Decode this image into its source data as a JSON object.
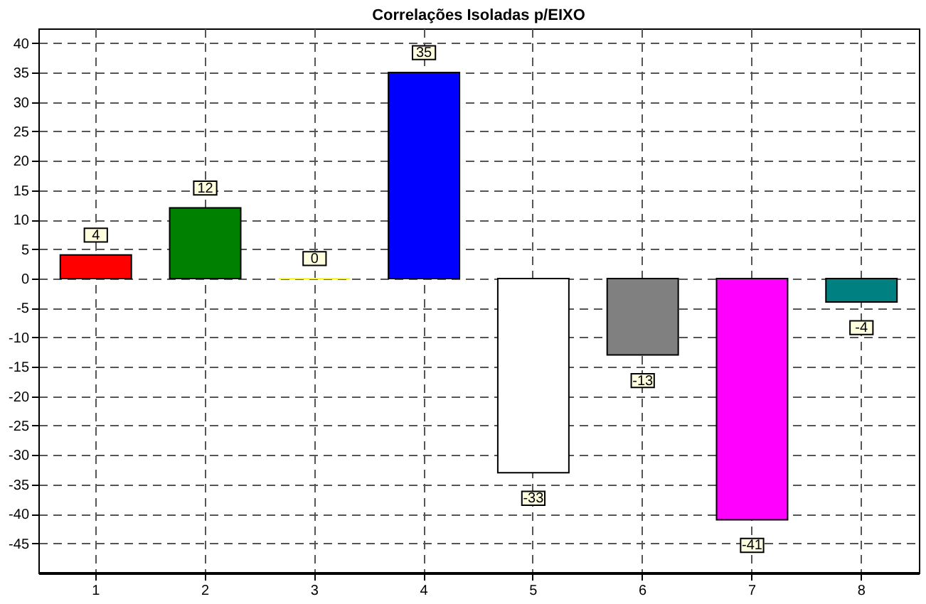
{
  "chart_data": {
    "type": "bar",
    "title": "Correlações Isoladas p/EIXO",
    "categories": [
      "1",
      "2",
      "3",
      "4",
      "5",
      "6",
      "7",
      "8"
    ],
    "values": [
      4,
      12,
      0,
      35,
      -33,
      -13,
      -41,
      -4
    ],
    "colors": [
      "#ff0000",
      "#008000",
      "#ffff00",
      "#0000ff",
      "#ffffff",
      "#808080",
      "#ff00ff",
      "#008080"
    ],
    "ylim": [
      -50,
      42.5
    ],
    "yticks": [
      -45,
      -40,
      -35,
      -30,
      -25,
      -20,
      -15,
      -10,
      -5,
      0,
      5,
      10,
      15,
      20,
      25,
      30,
      35,
      40
    ],
    "grid": true,
    "data_labels": true
  }
}
